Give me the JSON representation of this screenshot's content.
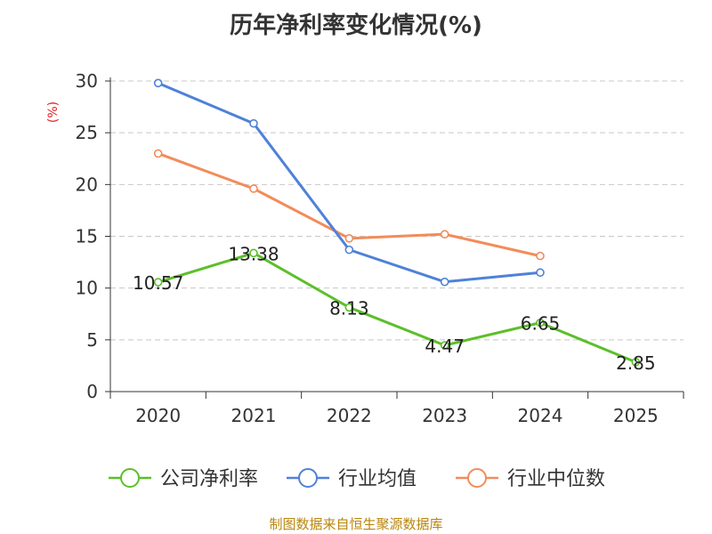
{
  "chart_data": {
    "type": "line",
    "title": "历年净利率变化情况(%)",
    "ylabel": "(%)",
    "xlabel": "",
    "categories": [
      "2020",
      "2021",
      "2022",
      "2023",
      "2024",
      "2025"
    ],
    "ylim": [
      0,
      30
    ],
    "yticks": [
      0,
      5,
      10,
      15,
      20,
      25,
      30
    ],
    "grid": true,
    "legend_position": "bottom",
    "series": [
      {
        "name": "公司净利率",
        "color": "#5cbf2a",
        "values": [
          10.57,
          13.38,
          8.13,
          4.47,
          6.65,
          2.85
        ],
        "labels": [
          "10.57",
          "13.38",
          "8.13",
          "4.47",
          "6.65",
          "2.85"
        ]
      },
      {
        "name": "行业均值",
        "color": "#4f81d9",
        "values": [
          29.8,
          25.9,
          13.7,
          10.6,
          11.5,
          null
        ]
      },
      {
        "name": "行业中位数",
        "color": "#f28c5a",
        "values": [
          23.0,
          19.6,
          14.8,
          15.2,
          13.1,
          null
        ]
      }
    ]
  },
  "footer": "制图数据来自恒生聚源数据库"
}
